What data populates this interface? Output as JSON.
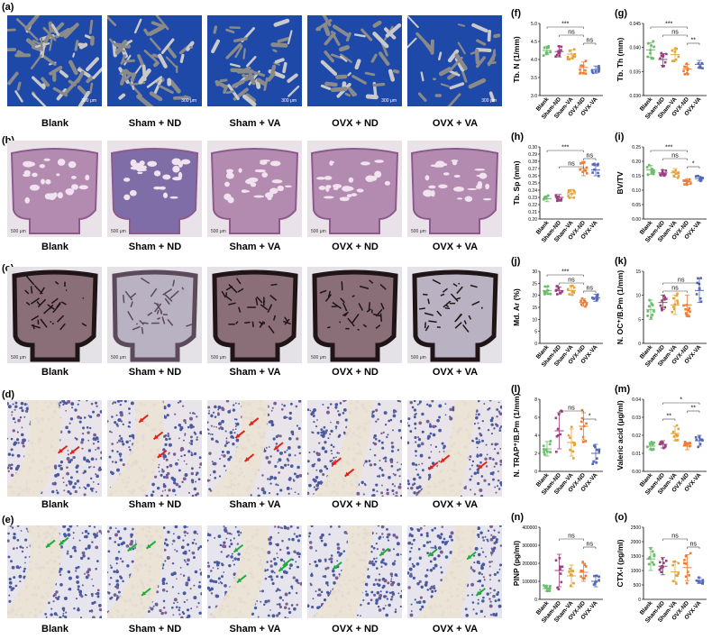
{
  "panel_letters": [
    "(a)",
    "(b)",
    "(c)",
    "(d)",
    "(e)"
  ],
  "group_labels": [
    "Blank",
    "Sham + ND",
    "Sham + VA",
    "OVX + ND",
    "OVX + VA"
  ],
  "microct_scale": "300 μm",
  "he_scale": "500 μm",
  "groups_short": [
    "Blank",
    "Sham-ND",
    "Sham-VA",
    "OVX-ND",
    "OVX-VA"
  ],
  "colors": [
    "#6abf69",
    "#9b3f7f",
    "#e3a53b",
    "#f07c32",
    "#5468b7"
  ],
  "charts": [
    {
      "letter": "(f)",
      "ylabel": "Tb. N (1/mm)",
      "yticks": [
        "3.0",
        "3.5",
        "4.0",
        "4.5",
        "5.0"
      ],
      "ylim": [
        3.0,
        5.0
      ],
      "means": [
        4.25,
        4.22,
        4.15,
        3.78,
        3.72
      ],
      "sd": [
        0.12,
        0.15,
        0.12,
        0.15,
        0.1
      ],
      "sig": [
        {
          "a": 0,
          "b": 3,
          "t": "***",
          "lvl": 2
        },
        {
          "a": 1,
          "b": 3,
          "t": "ns",
          "lvl": 1
        },
        {
          "a": 3,
          "b": 4,
          "t": "ns",
          "lvl": 0
        }
      ]
    },
    {
      "letter": "(g)",
      "ylabel": "Tb. Th (mm)",
      "yticks": [
        "0.030",
        "0.035",
        "0.040",
        "0.045"
      ],
      "ylim": [
        0.03,
        0.045
      ],
      "means": [
        0.0395,
        0.0375,
        0.0385,
        0.0355,
        0.0365
      ],
      "sd": [
        0.0015,
        0.0012,
        0.0012,
        0.001,
        0.0008
      ],
      "sig": [
        {
          "a": 0,
          "b": 3,
          "t": "***",
          "lvl": 2
        },
        {
          "a": 1,
          "b": 3,
          "t": "ns",
          "lvl": 1
        },
        {
          "a": 3,
          "b": 4,
          "t": "**",
          "lvl": 0
        }
      ]
    },
    {
      "letter": "(h)",
      "ylabel": "Tb. Sp (mm)",
      "yticks": [
        "0.20",
        "0.21",
        "0.22",
        "0.23",
        "0.24",
        "0.25",
        "0.26",
        "0.27",
        "0.28",
        "0.29",
        "0.30"
      ],
      "ylim": [
        0.2,
        0.3
      ],
      "means": [
        0.228,
        0.23,
        0.235,
        0.27,
        0.268
      ],
      "sd": [
        0.004,
        0.004,
        0.006,
        0.01,
        0.008
      ],
      "sig": [
        {
          "a": 0,
          "b": 3,
          "t": "***",
          "lvl": 2
        },
        {
          "a": 1,
          "b": 3,
          "t": "ns",
          "lvl": 0
        },
        {
          "a": 3,
          "b": 4,
          "t": "ns",
          "lvl": 1
        }
      ]
    },
    {
      "letter": "(i)",
      "ylabel": "BV/TV",
      "yticks": [
        "0.00",
        "0.05",
        "0.10",
        "0.15",
        "0.20",
        "0.25"
      ],
      "ylim": [
        0,
        0.25
      ],
      "means": [
        0.17,
        0.16,
        0.16,
        0.13,
        0.14
      ],
      "sd": [
        0.015,
        0.01,
        0.015,
        0.01,
        0.008
      ],
      "sig": [
        {
          "a": 0,
          "b": 3,
          "t": "***",
          "lvl": 2
        },
        {
          "a": 1,
          "b": 3,
          "t": "ns",
          "lvl": 1
        },
        {
          "a": 3,
          "b": 4,
          "t": "*",
          "lvl": 0
        }
      ]
    },
    {
      "letter": "(j)",
      "ylabel": "Md. Ar (%)",
      "yticks": [
        "0",
        "5",
        "10",
        "15",
        "20",
        "25",
        "30"
      ],
      "ylim": [
        0,
        30
      ],
      "means": [
        22,
        22,
        22,
        17,
        19
      ],
      "sd": [
        1.5,
        1.5,
        2,
        1.5,
        1.5
      ],
      "sig": [
        {
          "a": 0,
          "b": 3,
          "t": "***",
          "lvl": 2
        },
        {
          "a": 1,
          "b": 3,
          "t": "ns",
          "lvl": 1
        },
        {
          "a": 3,
          "b": 4,
          "t": "ns",
          "lvl": 0
        }
      ]
    },
    {
      "letter": "(k)",
      "ylabel": "N. OC⁺/B.Pm (1/mm)",
      "yticks": [
        "0",
        "5",
        "10",
        "15"
      ],
      "ylim": [
        0,
        15
      ],
      "means": [
        7,
        8.5,
        8,
        8,
        11
      ],
      "sd": [
        2,
        1.5,
        2,
        2,
        2.5
      ],
      "sig": [
        {
          "a": 1,
          "b": 4,
          "t": "ns",
          "lvl": 1
        },
        {
          "a": 1,
          "b": 3,
          "t": "ns",
          "lvl": 0
        }
      ]
    },
    {
      "letter": "(l)",
      "ylabel": "N. TRAP⁺/B.Pm (1/mm)",
      "yticks": [
        "0",
        "2",
        "4",
        "6",
        "8"
      ],
      "ylim": [
        0,
        8
      ],
      "means": [
        2.5,
        4.5,
        3.2,
        5,
        2
      ],
      "sd": [
        0.8,
        2,
        1.5,
        1.5,
        1
      ],
      "sig": [
        {
          "a": 1,
          "b": 3,
          "t": "ns",
          "lvl": 1
        },
        {
          "a": 3,
          "b": 4,
          "t": "*",
          "lvl": 0
        }
      ]
    },
    {
      "letter": "(m)",
      "ylabel": "Valeric acid (μg/ml)",
      "yticks": [
        "0.00",
        "0.01",
        "0.02",
        "0.03",
        "0.04"
      ],
      "ylim": [
        0,
        0.04
      ],
      "means": [
        0.014,
        0.015,
        0.021,
        0.014,
        0.017
      ],
      "sd": [
        0.002,
        0.002,
        0.004,
        0.002,
        0.003
      ],
      "sig": [
        {
          "a": 1,
          "b": 4,
          "t": "*",
          "lvl": 2
        },
        {
          "a": 1,
          "b": 2,
          "t": "**",
          "lvl": 0
        },
        {
          "a": 3,
          "b": 4,
          "t": "**",
          "lvl": 1
        }
      ]
    },
    {
      "letter": "(n)",
      "ylabel": "PINP (pg/ml)",
      "yticks": [
        "0",
        "100000",
        "200000",
        "300000",
        "400000"
      ],
      "ylim": [
        0,
        400000
      ],
      "means": [
        60000,
        160000,
        130000,
        150000,
        100000
      ],
      "sd": [
        15000,
        90000,
        60000,
        50000,
        30000
      ],
      "sig": [
        {
          "a": 1,
          "b": 3,
          "t": "ns",
          "lvl": 1
        },
        {
          "a": 3,
          "b": 4,
          "t": "ns",
          "lvl": 0
        }
      ]
    },
    {
      "letter": "(o)",
      "ylabel": "CTX-I (pg/ml)",
      "yticks": [
        "0",
        "500",
        "1000",
        "1500",
        "2000",
        "2500"
      ],
      "ylim": [
        0,
        2500
      ],
      "means": [
        1400,
        1150,
        950,
        1100,
        650
      ],
      "sd": [
        400,
        300,
        350,
        450,
        100
      ],
      "sig": [
        {
          "a": 1,
          "b": 3,
          "t": "ns",
          "lvl": 1
        },
        {
          "a": 3,
          "b": 4,
          "t": "ns",
          "lvl": 0
        }
      ]
    }
  ]
}
